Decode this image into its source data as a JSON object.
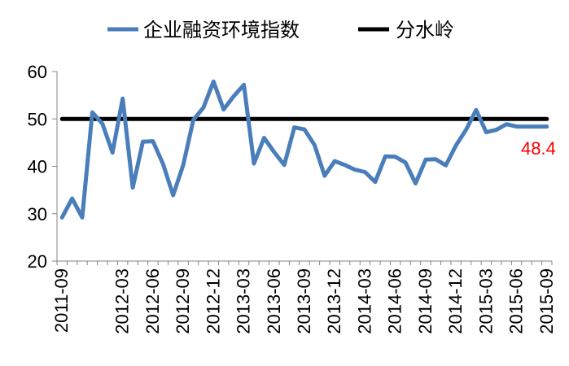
{
  "chart_data": {
    "type": "line",
    "title": "",
    "xlabel": "",
    "ylabel": "",
    "ylim": [
      20,
      60
    ],
    "yticks": [
      20,
      30,
      40,
      50,
      60
    ],
    "grid": false,
    "legend_position": "top",
    "x": [
      "2011-09",
      "2011-10",
      "2011-11",
      "2011-12",
      "2012-01",
      "2012-02",
      "2012-03",
      "2012-04",
      "2012-05",
      "2012-06",
      "2012-07",
      "2012-08",
      "2012-09",
      "2012-10",
      "2012-11",
      "2012-12",
      "2013-01",
      "2013-02",
      "2013-03",
      "2013-04",
      "2013-05",
      "2013-06",
      "2013-07",
      "2013-08",
      "2013-09",
      "2013-10",
      "2013-11",
      "2013-12",
      "2014-01",
      "2014-02",
      "2014-03",
      "2014-04",
      "2014-05",
      "2014-06",
      "2014-07",
      "2014-08",
      "2014-09",
      "2014-10",
      "2014-11",
      "2014-12",
      "2015-01",
      "2015-02",
      "2015-03",
      "2015-04",
      "2015-05",
      "2015-06",
      "2015-07",
      "2015-08",
      "2015-09"
    ],
    "x_tick_labels": [
      "2011-09",
      "2012-03",
      "2012-06",
      "2012-09",
      "2012-12",
      "2013-03",
      "2013-06",
      "2013-09",
      "2013-12",
      "2014-03",
      "2014-06",
      "2014-09",
      "2014-12",
      "2015-03",
      "2015-06",
      "2015-09"
    ],
    "series": [
      {
        "name": "企业融资环境指数",
        "color": "#4a7ebb",
        "values": [
          29.2,
          33.2,
          29.2,
          51.4,
          49.0,
          42.9,
          54.3,
          35.5,
          45.2,
          45.3,
          40.5,
          33.9,
          40.3,
          49.8,
          52.4,
          57.9,
          52.0,
          54.8,
          57.2,
          40.6,
          46.0,
          43.0,
          40.3,
          48.2,
          47.8,
          44.5,
          38.0,
          41.1,
          40.3,
          39.3,
          38.8,
          36.7,
          42.1,
          42.0,
          40.8,
          36.4,
          41.4,
          41.5,
          40.2,
          44.4,
          47.7,
          51.9,
          47.2,
          47.7,
          48.9,
          48.4,
          48.4,
          48.4,
          48.4
        ]
      },
      {
        "name": "分水岭",
        "color": "#000000",
        "values": [
          50,
          50,
          50,
          50,
          50,
          50,
          50,
          50,
          50,
          50,
          50,
          50,
          50,
          50,
          50,
          50,
          50,
          50,
          50,
          50,
          50,
          50,
          50,
          50,
          50,
          50,
          50,
          50,
          50,
          50,
          50,
          50,
          50,
          50,
          50,
          50,
          50,
          50,
          50,
          50,
          50,
          50,
          50,
          50,
          50,
          50,
          50,
          50,
          50
        ]
      }
    ],
    "annotations": [
      {
        "text": "48.4",
        "color": "#ff0000"
      }
    ]
  }
}
